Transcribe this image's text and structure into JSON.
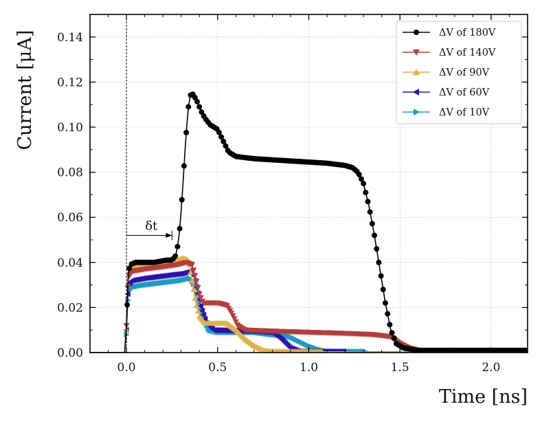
{
  "chart_data": {
    "type": "line",
    "title": "",
    "xlabel": "Time [ns]",
    "ylabel": "Current [μA]",
    "xlim": [
      -0.2,
      2.2
    ],
    "ylim": [
      0.0,
      0.15
    ],
    "xticks": [
      0.0,
      0.5,
      1.0,
      1.5,
      2.0
    ],
    "xtick_labels": [
      "0.0",
      "0.5",
      "1.0",
      "1.5",
      "2.0"
    ],
    "yticks": [
      0.0,
      0.02,
      0.04,
      0.06,
      0.08,
      0.1,
      0.12,
      0.14
    ],
    "ytick_labels": [
      "0.00",
      "0.02",
      "0.04",
      "0.06",
      "0.08",
      "0.10",
      "0.12",
      "0.14"
    ],
    "grid": true,
    "legend_position": "top-right",
    "annotation": {
      "text": "δt",
      "x_start": 0.0,
      "x_end": 0.25,
      "y": 0.052
    },
    "vertical_reference_line_x": 0.0,
    "series": [
      {
        "name": "ΔV of 180V",
        "color": "#000000",
        "marker": "circle",
        "points": [
          [
            -0.2,
            0
          ],
          [
            -0.01,
            0
          ],
          [
            0.0,
            0.012
          ],
          [
            0.01,
            0.035
          ],
          [
            0.02,
            0.039
          ],
          [
            0.05,
            0.04
          ],
          [
            0.15,
            0.04
          ],
          [
            0.22,
            0.041
          ],
          [
            0.25,
            0.041
          ],
          [
            0.27,
            0.043
          ],
          [
            0.28,
            0.047
          ],
          [
            0.29,
            0.053
          ],
          [
            0.3,
            0.063
          ],
          [
            0.31,
            0.075
          ],
          [
            0.32,
            0.088
          ],
          [
            0.33,
            0.1
          ],
          [
            0.34,
            0.109
          ],
          [
            0.35,
            0.114
          ],
          [
            0.36,
            0.115
          ],
          [
            0.37,
            0.114
          ],
          [
            0.39,
            0.111
          ],
          [
            0.41,
            0.107
          ],
          [
            0.43,
            0.104
          ],
          [
            0.46,
            0.101
          ],
          [
            0.5,
            0.099
          ],
          [
            0.53,
            0.094
          ],
          [
            0.56,
            0.089
          ],
          [
            0.6,
            0.087
          ],
          [
            0.7,
            0.086
          ],
          [
            0.8,
            0.0855
          ],
          [
            0.9,
            0.085
          ],
          [
            1.0,
            0.0845
          ],
          [
            1.1,
            0.084
          ],
          [
            1.2,
            0.083
          ],
          [
            1.24,
            0.082
          ],
          [
            1.27,
            0.08
          ],
          [
            1.3,
            0.075
          ],
          [
            1.33,
            0.065
          ],
          [
            1.36,
            0.052
          ],
          [
            1.39,
            0.037
          ],
          [
            1.42,
            0.022
          ],
          [
            1.45,
            0.01
          ],
          [
            1.48,
            0.004
          ],
          [
            1.52,
            0.002
          ],
          [
            1.6,
            0.001
          ],
          [
            2.2,
            0.001
          ]
        ]
      },
      {
        "name": "ΔV of 140V",
        "color": "#b53d3a",
        "marker": "triangle-down",
        "points": [
          [
            -0.2,
            0
          ],
          [
            -0.01,
            0
          ],
          [
            0.0,
            0.012
          ],
          [
            0.01,
            0.033
          ],
          [
            0.03,
            0.036
          ],
          [
            0.1,
            0.037
          ],
          [
            0.2,
            0.038
          ],
          [
            0.28,
            0.039
          ],
          [
            0.33,
            0.04
          ],
          [
            0.36,
            0.039
          ],
          [
            0.38,
            0.033
          ],
          [
            0.4,
            0.026
          ],
          [
            0.42,
            0.022
          ],
          [
            0.5,
            0.022
          ],
          [
            0.55,
            0.021
          ],
          [
            0.58,
            0.017
          ],
          [
            0.61,
            0.012
          ],
          [
            0.65,
            0.01
          ],
          [
            0.8,
            0.0095
          ],
          [
            1.0,
            0.009
          ],
          [
            1.2,
            0.0085
          ],
          [
            1.35,
            0.008
          ],
          [
            1.45,
            0.007
          ],
          [
            1.5,
            0.004
          ],
          [
            1.55,
            0.002
          ],
          [
            1.6,
            0.001
          ],
          [
            2.2,
            0.0005
          ]
        ]
      },
      {
        "name": "ΔV of 90V",
        "color": "#e0b443",
        "marker": "triangle-up",
        "points": [
          [
            -0.2,
            0
          ],
          [
            -0.01,
            0
          ],
          [
            0.0,
            0.01
          ],
          [
            0.01,
            0.035
          ],
          [
            0.03,
            0.038
          ],
          [
            0.1,
            0.039
          ],
          [
            0.2,
            0.04
          ],
          [
            0.28,
            0.041
          ],
          [
            0.31,
            0.042
          ],
          [
            0.34,
            0.041
          ],
          [
            0.36,
            0.032
          ],
          [
            0.38,
            0.022
          ],
          [
            0.4,
            0.016
          ],
          [
            0.43,
            0.013
          ],
          [
            0.55,
            0.013
          ],
          [
            0.6,
            0.01
          ],
          [
            0.65,
            0.006
          ],
          [
            0.7,
            0.003
          ],
          [
            0.75,
            0.001
          ],
          [
            0.8,
            0.0005
          ],
          [
            2.2,
            0
          ]
        ]
      },
      {
        "name": "ΔV of 60V",
        "color": "#2b12b0",
        "marker": "triangle-left",
        "points": [
          [
            -0.2,
            0
          ],
          [
            -0.01,
            0
          ],
          [
            0.0,
            0.01
          ],
          [
            0.01,
            0.03
          ],
          [
            0.03,
            0.032
          ],
          [
            0.1,
            0.033
          ],
          [
            0.2,
            0.034
          ],
          [
            0.3,
            0.035
          ],
          [
            0.35,
            0.036
          ],
          [
            0.37,
            0.034
          ],
          [
            0.39,
            0.027
          ],
          [
            0.41,
            0.02
          ],
          [
            0.44,
            0.013
          ],
          [
            0.48,
            0.01
          ],
          [
            0.7,
            0.0095
          ],
          [
            0.8,
            0.009
          ],
          [
            0.85,
            0.006
          ],
          [
            0.9,
            0.002
          ],
          [
            0.95,
            0.0005
          ],
          [
            2.2,
            0
          ]
        ]
      },
      {
        "name": "ΔV of 10V",
        "color": "#1a9bc6",
        "marker": "triangle-right",
        "points": [
          [
            -0.2,
            0
          ],
          [
            -0.01,
            0
          ],
          [
            0.0,
            0.008
          ],
          [
            0.01,
            0.027
          ],
          [
            0.03,
            0.029
          ],
          [
            0.1,
            0.03
          ],
          [
            0.2,
            0.031
          ],
          [
            0.3,
            0.032
          ],
          [
            0.35,
            0.033
          ],
          [
            0.37,
            0.03
          ],
          [
            0.39,
            0.024
          ],
          [
            0.42,
            0.016
          ],
          [
            0.45,
            0.01
          ],
          [
            0.5,
            0.009
          ],
          [
            0.7,
            0.009
          ],
          [
            0.8,
            0.008
          ],
          [
            0.9,
            0.007
          ],
          [
            0.95,
            0.005
          ],
          [
            1.0,
            0.003
          ],
          [
            1.05,
            0.0015
          ],
          [
            1.1,
            0.0005
          ],
          [
            2.2,
            0
          ]
        ]
      }
    ]
  }
}
